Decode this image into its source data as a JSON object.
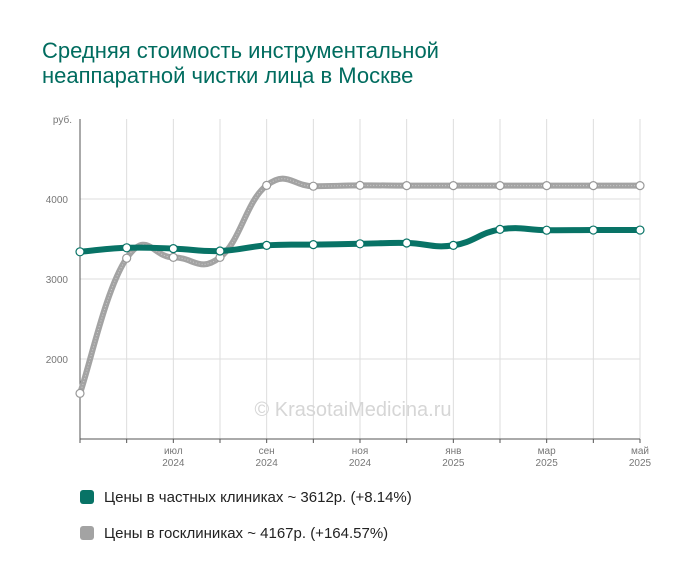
{
  "title_lines": [
    "Средняя стоимость инструментальной",
    "неаппаратной чистки лица в Москве"
  ],
  "watermark": "© KrasotaiMedicina.ru",
  "colors": {
    "private": "#087366",
    "public": "#a3a3a3",
    "grid": "#dddddd",
    "axis": "#555555",
    "title": "#006c5f"
  },
  "legend": [
    {
      "label": "Цены в частных клиниках ~ 3612р. (+8.14%)",
      "color": "#087366"
    },
    {
      "label": "Цены в госклиниках ~ 4167р. (+164.57%)",
      "color": "#a3a3a3"
    }
  ],
  "chart_data": {
    "type": "line",
    "ylabel": "руб.",
    "ylim": [
      1000,
      5000
    ],
    "y_ticks": [
      2000,
      3000,
      4000
    ],
    "x": [
      "2024-05",
      "2024-06",
      "2024-07",
      "2024-08",
      "2024-09",
      "2024-10",
      "2024-11",
      "2024-12",
      "2025-01",
      "2025-02",
      "2025-03",
      "2025-04",
      "2025-05"
    ],
    "x_tick_labels": [
      {
        "month": "июл",
        "year": "2024",
        "at": 2
      },
      {
        "month": "сен",
        "year": "2024",
        "at": 4
      },
      {
        "month": "ноя",
        "year": "2024",
        "at": 6
      },
      {
        "month": "янв",
        "year": "2025",
        "at": 8
      },
      {
        "month": "мар",
        "year": "2025",
        "at": 10
      },
      {
        "month": "май",
        "year": "2025",
        "at": 12
      }
    ],
    "series": [
      {
        "name": "Цены в частных клиниках",
        "color": "#087366",
        "values": [
          3340,
          3390,
          3380,
          3350,
          3420,
          3430,
          3440,
          3450,
          3420,
          3620,
          3610,
          3612,
          3612
        ]
      },
      {
        "name": "Цены в госклиниках",
        "color": "#a3a3a3",
        "values": [
          1570,
          3260,
          3270,
          3270,
          4170,
          4160,
          4170,
          4167,
          4167,
          4167,
          4167,
          4167,
          4167
        ]
      }
    ]
  }
}
